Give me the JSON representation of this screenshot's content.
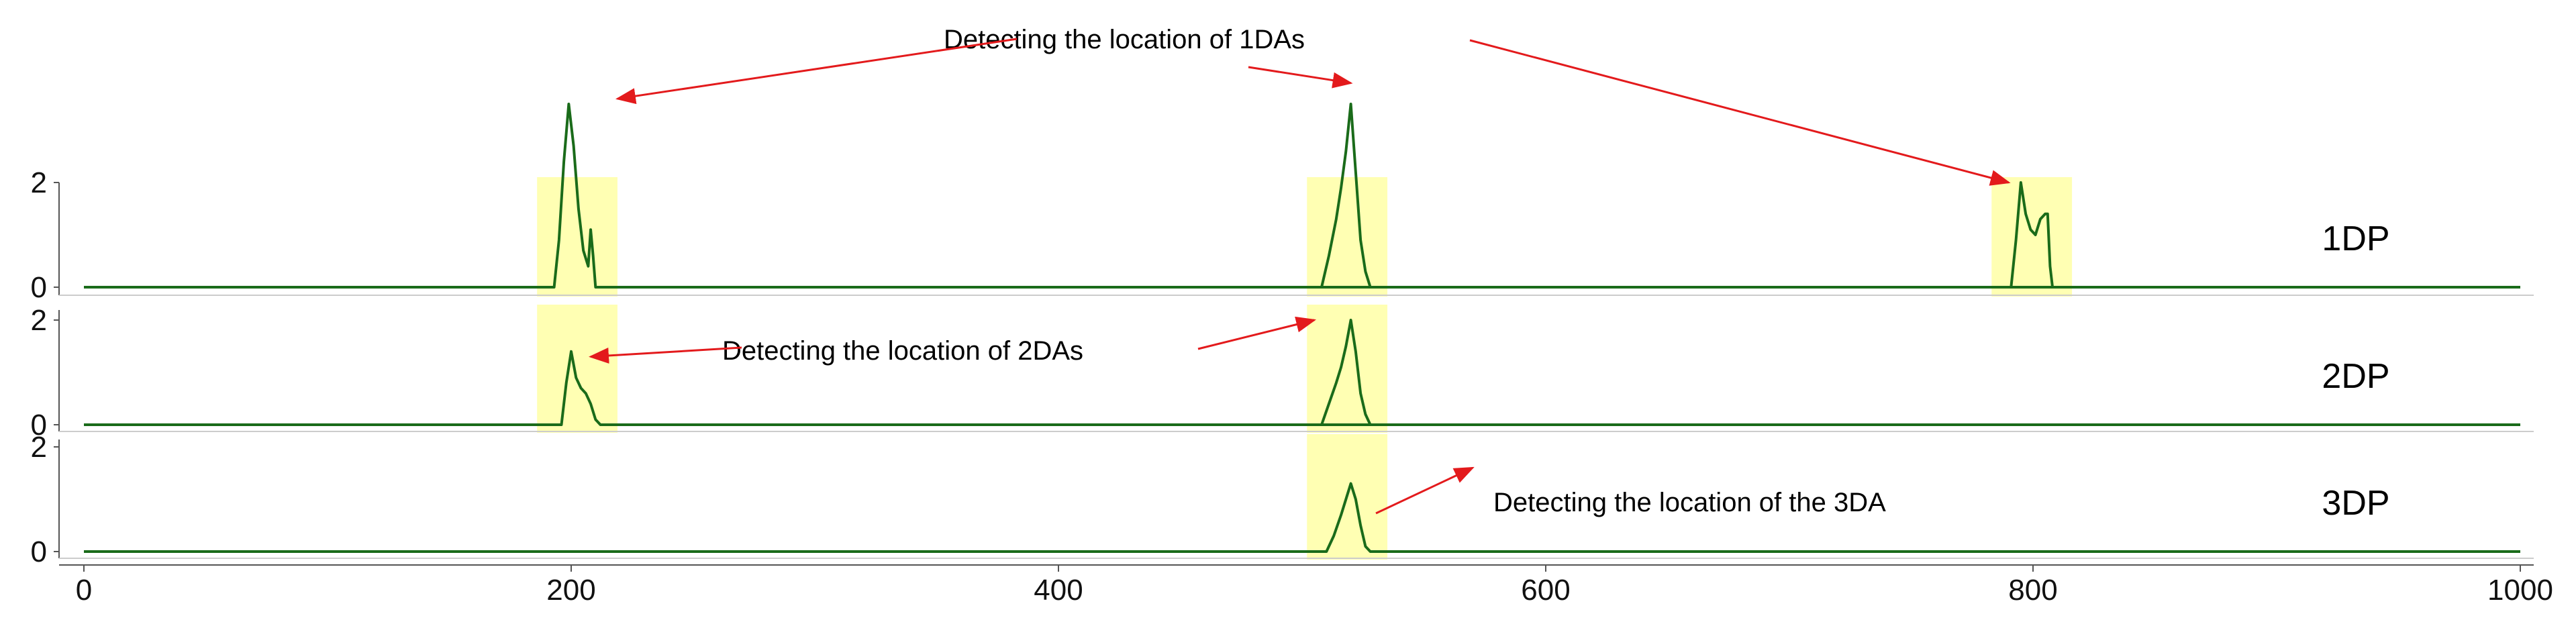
{
  "chart_data": {
    "type": "line",
    "x_axis": {
      "range": [
        0,
        1000
      ],
      "ticks": [
        0,
        200,
        400,
        600,
        800,
        1000
      ]
    },
    "colors": {
      "line": "#1a6b1a",
      "highlight": "#ffffb3",
      "arrow": "#e31a1c",
      "axis": "#333333"
    },
    "panels": [
      {
        "label": "1DP",
        "y_axis": {
          "range": [
            0,
            3.6
          ],
          "ticks": [
            0,
            2
          ]
        },
        "highlights": [
          [
            186,
            219
          ],
          [
            502,
            535
          ],
          [
            783,
            816
          ]
        ],
        "series": [
          {
            "x": [
              0,
              193,
              195,
              197,
              199,
              201,
              203,
              205,
              207,
              208,
              209,
              210,
              211,
              212,
              1000
            ],
            "y": [
              0,
              0,
              0.9,
              2.4,
              3.5,
              2.7,
              1.5,
              0.7,
              0.4,
              1.1,
              0.6,
              0,
              0,
              0,
              0
            ]
          },
          {
            "x": [
              500,
              508,
              511,
              514,
              516,
              518,
              520,
              522,
              524,
              526,
              528,
              530
            ],
            "y": [
              0,
              0,
              0.6,
              1.3,
              1.9,
              2.6,
              3.5,
              2.2,
              0.9,
              0.3,
              0,
              0
            ]
          },
          {
            "x": [
              780,
              791,
              793,
              795,
              797,
              799,
              801,
              803,
              805,
              806,
              807,
              808,
              820
            ],
            "y": [
              0,
              0,
              0.9,
              2.0,
              1.4,
              1.1,
              1.0,
              1.3,
              1.4,
              1.4,
              0.4,
              0,
              0
            ]
          }
        ]
      },
      {
        "label": "2DP",
        "y_axis": {
          "range": [
            0,
            3.6
          ],
          "ticks": [
            0,
            2
          ]
        },
        "highlights": [
          [
            186,
            219
          ],
          [
            502,
            535
          ]
        ],
        "series": [
          {
            "x": [
              0,
              196,
              198,
              200,
              202,
              204,
              206,
              208,
              210,
              212,
              1000
            ],
            "y": [
              0,
              0,
              0.8,
              1.4,
              0.9,
              0.7,
              0.6,
              0.4,
              0.1,
              0,
              0
            ]
          },
          {
            "x": [
              500,
              508,
              511,
              514,
              516,
              518,
              520,
              522,
              524,
              526,
              528,
              530
            ],
            "y": [
              0,
              0,
              0.4,
              0.8,
              1.1,
              1.5,
              2.0,
              1.4,
              0.6,
              0.2,
              0,
              0
            ]
          }
        ]
      },
      {
        "label": "3DP",
        "y_axis": {
          "range": [
            0,
            3.6
          ],
          "ticks": [
            0,
            2
          ]
        },
        "highlights": [
          [
            502,
            535
          ]
        ],
        "series": [
          {
            "x": [
              0,
              510,
              513,
              516,
              518,
              520,
              522,
              524,
              526,
              528,
              1000
            ],
            "y": [
              0,
              0,
              0.3,
              0.7,
              1.0,
              1.3,
              1.0,
              0.5,
              0.1,
              0,
              0
            ]
          }
        ]
      }
    ],
    "annotations": [
      {
        "text": "Detecting the location of 1DAs",
        "panel": 0,
        "arrows": [
          {
            "to_x": 219,
            "to_y": 3.6,
            "panel": 0
          },
          {
            "to_x": 520,
            "to_y": 3.9,
            "panel": 0
          },
          {
            "to_x": 790,
            "to_y": 2.0,
            "panel": 0
          }
        ]
      },
      {
        "text": "Detecting the location of 2DAs",
        "panel": 1,
        "arrows": [
          {
            "to_x": 208,
            "to_y": 1.3,
            "panel": 1
          },
          {
            "to_x": 505,
            "to_y": 2.0,
            "panel": 1
          }
        ]
      },
      {
        "text": "Detecting the location of the 3DA",
        "panel": 2,
        "arrows": [
          {
            "to_x": 570,
            "to_y": 1.6,
            "panel": 2
          }
        ]
      }
    ]
  }
}
